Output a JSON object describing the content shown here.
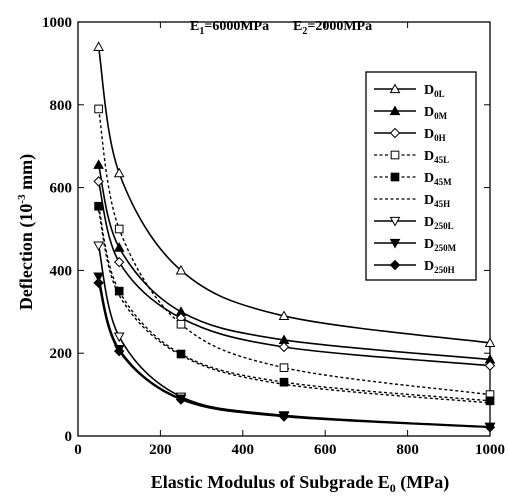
{
  "chart_data": {
    "type": "line",
    "title": "",
    "annotations": [
      {
        "text": "E",
        "sub": "1",
        "rest": "=6000MPa"
      },
      {
        "text": "E",
        "sub": "2",
        "rest": "=2000MPa"
      }
    ],
    "xlabel": "Elastic Modulus of Subgrade E",
    "xlabel_sub": "0",
    "xlabel_unit": " (MPa)",
    "ylabel": "Deflection (10",
    "ylabel_sup": "-3",
    "ylabel_unit": " mm)",
    "xlim": [
      0,
      1000
    ],
    "ylim": [
      0,
      1000
    ],
    "x_ticks": [
      "0",
      "200",
      "400",
      "600",
      "800",
      "1000"
    ],
    "y_ticks": [
      "0",
      "200",
      "400",
      "600",
      "800",
      "1000"
    ],
    "grid": false,
    "legend_position": "right",
    "x": [
      50,
      100,
      250,
      500,
      1000
    ],
    "series": [
      {
        "name": "D",
        "sub": "0L",
        "marker": "triangle-up-open",
        "dash": "solid",
        "values": [
          940,
          635,
          400,
          290,
          225
        ]
      },
      {
        "name": "D",
        "sub": "0M",
        "marker": "triangle-up-filled",
        "dash": "solid",
        "values": [
          655,
          455,
          300,
          232,
          185
        ]
      },
      {
        "name": "D",
        "sub": "0H",
        "marker": "diamond-open",
        "dash": "solid",
        "values": [
          615,
          420,
          285,
          215,
          170
        ]
      },
      {
        "name": "D",
        "sub": "45L",
        "marker": "square-open",
        "dash": "dashed",
        "values": [
          790,
          500,
          270,
          165,
          100
        ]
      },
      {
        "name": "D",
        "sub": "45M",
        "marker": "square-filled",
        "dash": "dashed",
        "values": [
          555,
          350,
          198,
          130,
          85
        ]
      },
      {
        "name": "D",
        "sub": "45H",
        "marker": "none",
        "dash": "dashed",
        "values": [
          545,
          340,
          195,
          125,
          80
        ]
      },
      {
        "name": "D",
        "sub": "250L",
        "marker": "triangle-down-open",
        "dash": "solid",
        "values": [
          460,
          240,
          95,
          50,
          22
        ]
      },
      {
        "name": "D",
        "sub": "250M",
        "marker": "triangle-down-filled",
        "dash": "solid",
        "values": [
          385,
          210,
          90,
          48,
          22
        ]
      },
      {
        "name": "D",
        "sub": "250H",
        "marker": "diamond-filled",
        "dash": "solid",
        "values": [
          370,
          205,
          88,
          47,
          21
        ]
      }
    ]
  }
}
